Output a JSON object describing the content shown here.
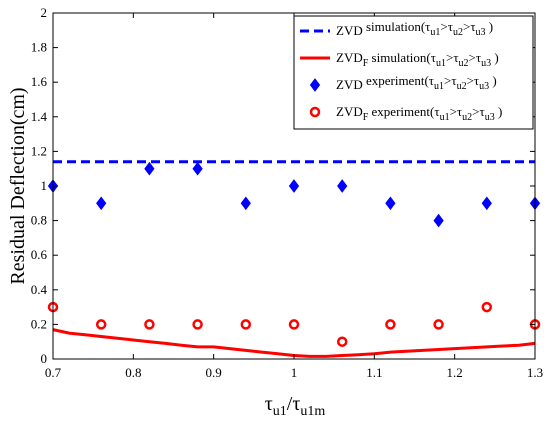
{
  "chart_data": {
    "type": "scatter",
    "xlabel": "τu1/τu1m",
    "xlabel_parts": {
      "main1": "τ",
      "sub1": "u1",
      "slash": "/",
      "main2": "τ",
      "sub2": "u1m"
    },
    "ylabel": "Residual Deflection(cm)",
    "xlim": [
      0.7,
      1.3
    ],
    "ylim": [
      0,
      2
    ],
    "x_ticks": [
      "0.7",
      "0.8",
      "0.9",
      "1",
      "1.1",
      "1.2",
      "1.3"
    ],
    "y_ticks": [
      "0",
      "0.2",
      "0.4",
      "0.6",
      "0.8",
      "1",
      "1.2",
      "1.4",
      "1.6",
      "1.8",
      "2"
    ],
    "grid": false,
    "legend_position": "top-right",
    "series": [
      {
        "name": "ZVD simulation(τu1>τu2>τu3)",
        "legend": {
          "main": "ZVD",
          "sub": "",
          "kind": "simulation"
        },
        "style": "dashed-line",
        "color": "#0000ff",
        "x": [
          0.7,
          1.3
        ],
        "y": [
          1.14,
          1.14
        ]
      },
      {
        "name": "ZVDF simulation(τu1>τu2>τu3)",
        "legend": {
          "main": "ZVD",
          "sub": "F",
          "kind": "simulation"
        },
        "style": "line",
        "color": "#ff0000",
        "x": [
          0.7,
          0.72,
          0.74,
          0.76,
          0.78,
          0.8,
          0.82,
          0.84,
          0.86,
          0.88,
          0.9,
          0.92,
          0.94,
          0.96,
          0.98,
          1.0,
          1.02,
          1.04,
          1.06,
          1.08,
          1.1,
          1.12,
          1.14,
          1.16,
          1.18,
          1.2,
          1.22,
          1.24,
          1.26,
          1.28,
          1.3
        ],
        "y": [
          0.17,
          0.15,
          0.14,
          0.13,
          0.12,
          0.11,
          0.1,
          0.09,
          0.08,
          0.07,
          0.07,
          0.06,
          0.05,
          0.04,
          0.03,
          0.02,
          0.015,
          0.015,
          0.02,
          0.025,
          0.03,
          0.04,
          0.045,
          0.05,
          0.055,
          0.06,
          0.065,
          0.07,
          0.075,
          0.08,
          0.09
        ]
      },
      {
        "name": "ZVD experiment(τu1>τu2>τu3)",
        "legend": {
          "main": "ZVD",
          "sub": "",
          "kind": "experiment"
        },
        "style": "diamond-markers",
        "color": "#0000ff",
        "x": [
          0.7,
          0.76,
          0.82,
          0.88,
          0.94,
          1.0,
          1.06,
          1.12,
          1.18,
          1.24,
          1.3
        ],
        "y": [
          1.0,
          0.9,
          1.1,
          1.1,
          0.9,
          1.0,
          1.0,
          0.9,
          0.8,
          0.9,
          0.9
        ]
      },
      {
        "name": "ZVDF experiment(τu1>τu2>τu3)",
        "legend": {
          "main": "ZVD",
          "sub": "F",
          "kind": "experiment"
        },
        "style": "circle-markers",
        "color": "#ff0000",
        "x": [
          0.7,
          0.76,
          0.82,
          0.88,
          0.94,
          1.0,
          1.06,
          1.12,
          1.18,
          1.24,
          1.3
        ],
        "y": [
          0.3,
          0.2,
          0.2,
          0.2,
          0.2,
          0.2,
          0.1,
          0.2,
          0.2,
          0.3,
          0.2
        ]
      }
    ]
  }
}
